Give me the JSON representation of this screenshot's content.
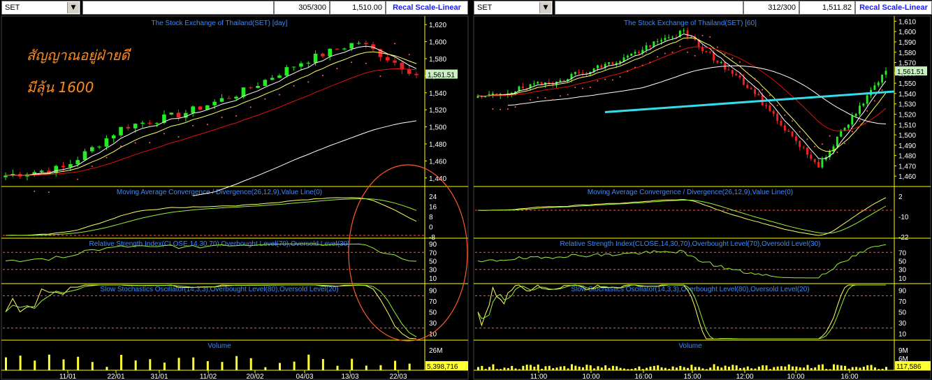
{
  "left": {
    "symbol": "SET",
    "counter": "305/300",
    "value": "1,510.00",
    "recal_label": "Recal Scale-Linear",
    "price_title": "The Stock Exchange of Thailand(SET) [day]",
    "annotation_line1": "สัญญาณอยู่ฝ่ายดี",
    "annotation_line2": "มีลุ้น 1600",
    "last_price_label": "1,561.51",
    "price_ticks": [
      "1,620",
      "1,600",
      "1,580",
      "1,560",
      "1,540",
      "1,520",
      "1,500",
      "1,480",
      "1,460",
      "1,440"
    ],
    "macd_title": "Moving Average Convergence / Divergence(26,12,9),Value Line(0)",
    "macd_ticks": [
      "24",
      "16",
      "8",
      "0",
      "-8"
    ],
    "rsi_title": "Relative Strength Index(CLOSE,14,30,70),Overbought Level(70),Oversold Level(30)",
    "rsi_ticks": [
      "90",
      "70",
      "50",
      "30",
      "10"
    ],
    "stoch_title": "Slow Stochastics Oscillator(14,3,3),Overbought Level(80),Oversold Level(20)",
    "stoch_ticks": [
      "90",
      "70",
      "50",
      "30",
      "10"
    ],
    "volume_title": "Volume",
    "volume_ticks": [
      "26M"
    ],
    "volume_last": "5,398,716",
    "date_labels": [
      "11/01",
      "22/01",
      "31/01",
      "11/02",
      "20/02",
      "04/03",
      "13/03",
      "22/03"
    ]
  },
  "right": {
    "symbol": "SET",
    "counter": "312/300",
    "value": "1,511.82",
    "recal_label": "Recal Scale-Linear",
    "price_title": "The Stock Exchange of Thailand(SET) [60]",
    "last_price_label": "1,561.51",
    "price_ticks": [
      "1,610",
      "1,600",
      "1,590",
      "1,580",
      "1,570",
      "1,560",
      "1,550",
      "1,540",
      "1,530",
      "1,520",
      "1,510",
      "1,500",
      "1,490",
      "1,480",
      "1,470",
      "1,460"
    ],
    "macd_title": "Moving Average Convergence / Divergence(26,12,9),Value Line(0)",
    "macd_ticks": [
      "2",
      "-10",
      "-22"
    ],
    "rsi_title": "Relative Strength Index(CLOSE,14,30,70),Overbought Level(70),Oversold Level(30)",
    "rsi_ticks": [
      "70",
      "50",
      "30",
      "10"
    ],
    "stoch_title": "Slow Stochastics Oscillator(14,3,3),Overbought Level(80),Oversold Level(20)",
    "stoch_ticks": [
      "90",
      "70",
      "50",
      "30",
      "10"
    ],
    "volume_title": "Volume",
    "volume_ticks": [
      "9M",
      "6M",
      "3M"
    ],
    "volume_last": "117,586",
    "date_labels": [
      "11:00",
      "10:00",
      "16:00",
      "15:00",
      "12:00",
      "10:00",
      "16:00"
    ]
  },
  "chart_data": [
    {
      "type": "candlestick",
      "title": "The Stock Exchange of Thailand(SET) [day]",
      "ylim": [
        1430,
        1630
      ],
      "x": [
        "11/01",
        "22/01",
        "31/01",
        "11/02",
        "20/02",
        "04/03",
        "13/03",
        "22/03"
      ],
      "close": [
        1443,
        1452,
        1500,
        1515,
        1540,
        1575,
        1600,
        1561.51
      ],
      "last": 1561.51
    },
    {
      "type": "line",
      "title": "Moving Average Convergence / Divergence(26,12,9),Value Line(0)",
      "ylim": [
        -10,
        28
      ]
    },
    {
      "type": "line",
      "title": "Relative Strength Index(CLOSE,14,30,70),Overbought Level(70),Oversold Level(30)",
      "ylim": [
        0,
        100
      ],
      "levels": [
        70,
        30
      ]
    },
    {
      "type": "line",
      "title": "Slow Stochastics Oscillator(14,3,3),Overbought Level(80),Oversold Level(20)",
      "ylim": [
        0,
        100
      ],
      "levels": [
        80,
        20
      ]
    },
    {
      "type": "bar",
      "title": "Volume",
      "last": 5398716
    },
    {
      "type": "candlestick",
      "title": "The Stock Exchange of Thailand(SET) [60]",
      "ylim": [
        1450,
        1615
      ],
      "x": [
        "11:00",
        "10:00",
        "16:00",
        "15:00",
        "12:00",
        "10:00",
        "16:00"
      ],
      "close": [
        1535,
        1550,
        1570,
        1600,
        1545,
        1470,
        1561.51
      ],
      "last": 1561.51
    }
  ],
  "colors": {
    "up": "#22ee22",
    "down": "#ee2222",
    "grid": "#ffff00",
    "title": "#3a8bff",
    "annotation": "#ff8a1c",
    "highlight_ma": "#33ddee"
  }
}
